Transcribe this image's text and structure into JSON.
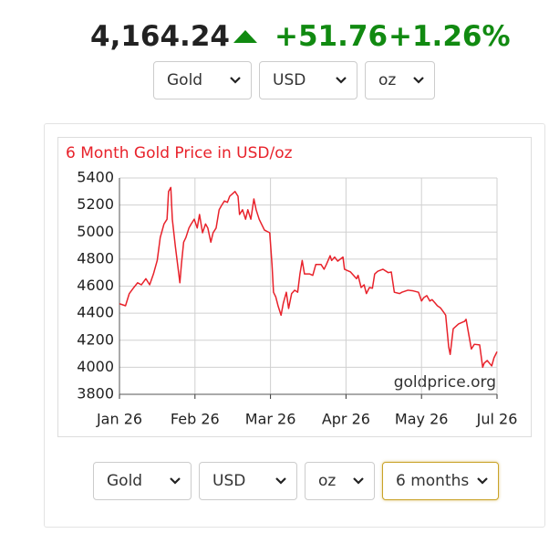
{
  "header": {
    "price": "4,164.24",
    "change": "+51.76",
    "change_percent": "+1.26%"
  },
  "selectors_top": [
    "Gold",
    "USD",
    "oz"
  ],
  "selectors_bottom": [
    "Gold",
    "USD",
    "oz",
    "6 months"
  ],
  "chart_data": {
    "type": "line",
    "title": "6 Month Gold Price in USD/oz",
    "annotation": "goldprice.org",
    "color": "#e8222b",
    "x": [
      0.0,
      0.08,
      0.13,
      0.19,
      0.24,
      0.29,
      0.35,
      0.4,
      0.45,
      0.5,
      0.54,
      0.59,
      0.63,
      0.65,
      0.68,
      0.7,
      0.74,
      0.77,
      0.8,
      0.82,
      0.85,
      0.88,
      0.92,
      0.95,
      0.99,
      1.03,
      1.06,
      1.1,
      1.14,
      1.17,
      1.21,
      1.24,
      1.28,
      1.32,
      1.35,
      1.39,
      1.43,
      1.46,
      1.5,
      1.53,
      1.57,
      1.59,
      1.63,
      1.67,
      1.7,
      1.74,
      1.78,
      1.81,
      1.85,
      1.88,
      1.92,
      1.99,
      2.02,
      2.04,
      2.07,
      2.1,
      2.14,
      2.17,
      2.21,
      2.24,
      2.28,
      2.32,
      2.36,
      2.39,
      2.42,
      2.45,
      2.52,
      2.56,
      2.6,
      2.67,
      2.71,
      2.74,
      2.79,
      2.81,
      2.85,
      2.89,
      2.96,
      2.98,
      3.06,
      3.14,
      3.16,
      3.2,
      3.24,
      3.27,
      3.31,
      3.35,
      3.38,
      3.42,
      3.49,
      3.56,
      3.6,
      3.64,
      3.71,
      3.74,
      3.82,
      3.89,
      3.96,
      4.0,
      4.03,
      4.07,
      4.11,
      4.14,
      4.18,
      4.21,
      4.25,
      4.29,
      4.32,
      4.36,
      4.38,
      4.42,
      4.46,
      4.49,
      4.57,
      4.59,
      4.63,
      4.66,
      4.7,
      4.77,
      4.81,
      4.83,
      4.87,
      4.9,
      4.93,
      4.96,
      5.0
    ],
    "values": [
      4470,
      4455,
      4545,
      4590,
      4625,
      4610,
      4655,
      4610,
      4690,
      4790,
      4960,
      5060,
      5095,
      5300,
      5330,
      5095,
      4895,
      4760,
      4625,
      4760,
      4925,
      4960,
      5030,
      5060,
      5095,
      5030,
      5130,
      4995,
      5060,
      5030,
      4925,
      4995,
      5030,
      5165,
      5195,
      5230,
      5220,
      5265,
      5285,
      5300,
      5265,
      5130,
      5165,
      5095,
      5165,
      5095,
      5245,
      5165,
      5095,
      5060,
      5015,
      4995,
      4760,
      4555,
      4520,
      4455,
      4385,
      4475,
      4555,
      4435,
      4545,
      4570,
      4555,
      4690,
      4790,
      4690,
      4690,
      4680,
      4760,
      4760,
      4725,
      4760,
      4825,
      4790,
      4815,
      4785,
      4815,
      4725,
      4705,
      4655,
      4680,
      4590,
      4610,
      4545,
      4590,
      4585,
      4690,
      4710,
      4725,
      4700,
      4705,
      4555,
      4545,
      4555,
      4570,
      4565,
      4555,
      4490,
      4515,
      4530,
      4490,
      4500,
      4475,
      4455,
      4440,
      4410,
      4385,
      4150,
      4095,
      4285,
      4305,
      4320,
      4340,
      4355,
      4230,
      4135,
      4170,
      4165,
      4000,
      4030,
      4050,
      4030,
      4010,
      4070,
      4115
    ],
    "xlim": [
      0,
      5
    ],
    "xticks": [
      {
        "value": 0,
        "label": "Jan 26"
      },
      {
        "value": 1,
        "label": "Feb 26"
      },
      {
        "value": 2,
        "label": "Mar 26"
      },
      {
        "value": 3,
        "label": "Apr 26"
      },
      {
        "value": 4,
        "label": "May 26"
      },
      {
        "value": 5,
        "label": "Jul 26"
      }
    ],
    "ylim": [
      3800,
      5400
    ],
    "yticks": [
      3800,
      4000,
      4200,
      4400,
      4600,
      4800,
      5000,
      5200,
      5400
    ],
    "grid": true
  }
}
